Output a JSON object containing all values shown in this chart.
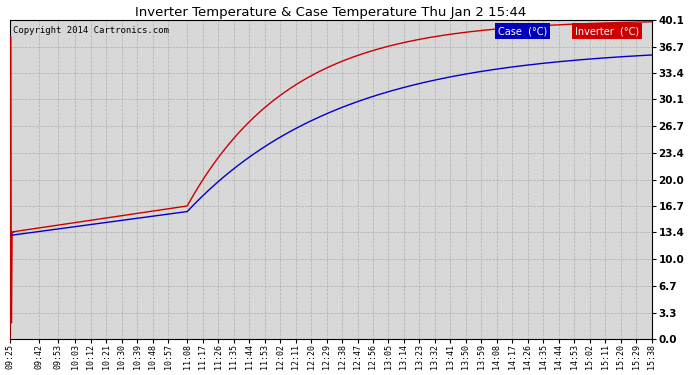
{
  "title": "Inverter Temperature & Case Temperature Thu Jan 2 15:44",
  "copyright": "Copyright 2014 Cartronics.com",
  "y_ticks": [
    0.0,
    3.3,
    6.7,
    10.0,
    13.4,
    16.7,
    20.0,
    23.4,
    26.7,
    30.1,
    33.4,
    36.7,
    40.1
  ],
  "ylim": [
    0.0,
    40.1
  ],
  "case_color": "#0000cc",
  "inverter_color": "#cc0000",
  "background_color": "#ffffff",
  "plot_bg_color": "#d8d8d8",
  "grid_color": "#aaaaaa",
  "legend_case_bg": "#0000bb",
  "legend_inverter_bg": "#cc0000",
  "x_labels": [
    "09:25",
    "09:42",
    "09:53",
    "10:03",
    "10:12",
    "10:21",
    "10:30",
    "10:39",
    "10:48",
    "10:57",
    "11:08",
    "11:17",
    "11:26",
    "11:35",
    "11:44",
    "11:53",
    "12:02",
    "12:11",
    "12:20",
    "12:29",
    "12:38",
    "12:47",
    "12:56",
    "13:05",
    "13:14",
    "13:23",
    "13:32",
    "13:41",
    "13:50",
    "13:59",
    "14:08",
    "14:17",
    "14:26",
    "14:35",
    "14:44",
    "14:53",
    "15:02",
    "15:11",
    "15:20",
    "15:29",
    "15:38"
  ]
}
